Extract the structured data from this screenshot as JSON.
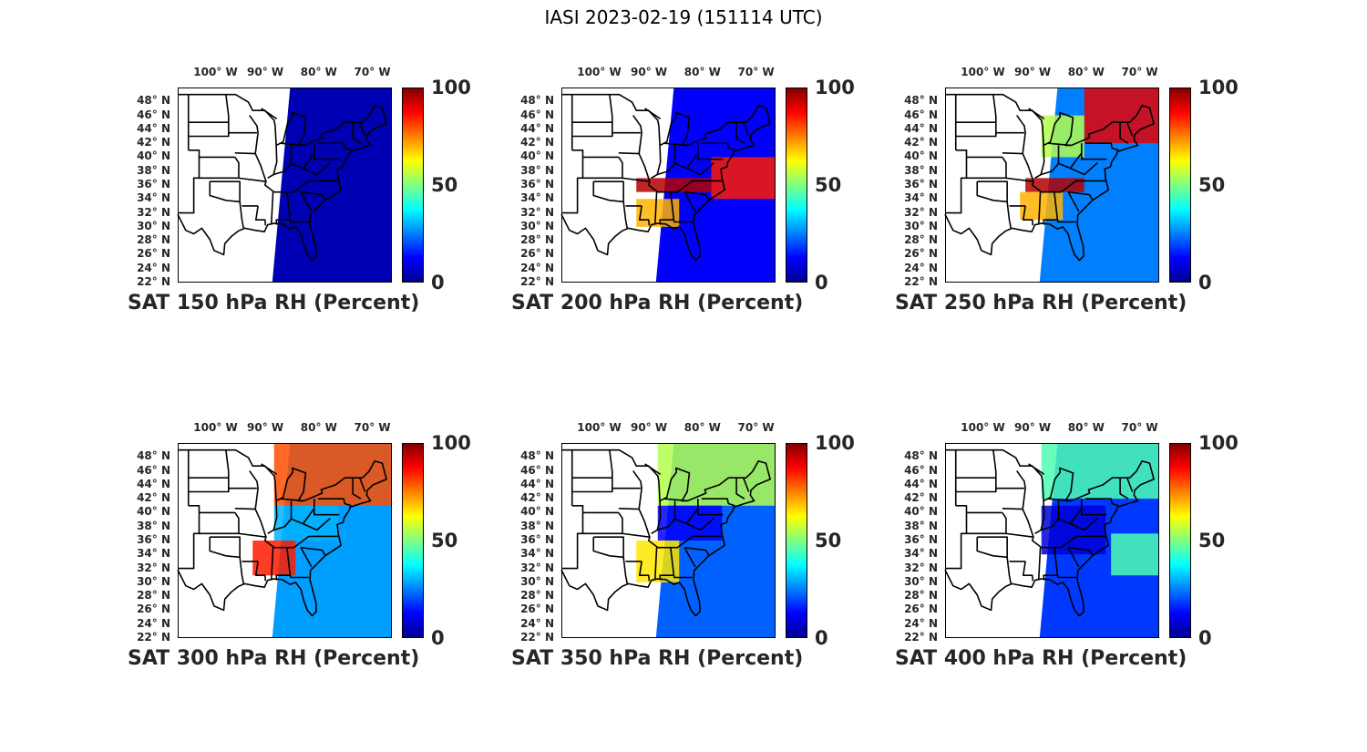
{
  "figure": {
    "title": "IASI 2023-02-19 (151114 UTC)"
  },
  "axes": {
    "lon_ticks": [
      "100° W",
      "90° W",
      "80° W",
      "70° W"
    ],
    "lat_ticks": [
      "48° N",
      "46° N",
      "44° N",
      "42° N",
      "40° N",
      "38° N",
      "36° N",
      "34° N",
      "32° N",
      "30° N",
      "28° N",
      "26° N",
      "24° N",
      "22° N"
    ]
  },
  "colorbar": {
    "ticks": [
      "100",
      "50",
      "0"
    ],
    "colormap": "jet",
    "colors": [
      "#00008f",
      "#0000ff",
      "#0080ff",
      "#00ffff",
      "#80ff80",
      "#ffff00",
      "#ff8000",
      "#ff0000",
      "#800000"
    ]
  },
  "chart_data": {
    "type": "map",
    "lon_range": [
      -106,
      -66
    ],
    "lat_range": [
      22,
      50
    ],
    "value_range": [
      0,
      100
    ],
    "panels": [
      {
        "title": "SAT 150 hPa RH (Percent)",
        "level_hPa": 150,
        "regions": [
          {
            "lon_min": -88,
            "lon_max": -66,
            "lat_min": 22,
            "lat_max": 50,
            "value": 4
          }
        ]
      },
      {
        "title": "SAT 200 hPa RH (Percent)",
        "level_hPa": 200,
        "regions": [
          {
            "lon_min": -88,
            "lon_max": -66,
            "lat_min": 22,
            "lat_max": 50,
            "value": 12
          },
          {
            "lon_min": -92,
            "lon_max": -78,
            "lat_min": 35,
            "lat_max": 37,
            "value": 95
          },
          {
            "lon_min": -78,
            "lon_max": -66,
            "lat_min": 34,
            "lat_max": 40,
            "value": 85
          },
          {
            "lon_min": -92,
            "lon_max": -84,
            "lat_min": 30,
            "lat_max": 34,
            "value": 70
          }
        ]
      },
      {
        "title": "SAT 250 hPa RH (Percent)",
        "level_hPa": 250,
        "regions": [
          {
            "lon_min": -88,
            "lon_max": -66,
            "lat_min": 22,
            "lat_max": 50,
            "value": 25
          },
          {
            "lon_min": -80,
            "lon_max": -66,
            "lat_min": 42,
            "lat_max": 50,
            "value": 90
          },
          {
            "lon_min": -91,
            "lon_max": -80,
            "lat_min": 35,
            "lat_max": 37,
            "value": 95
          },
          {
            "lon_min": -92,
            "lon_max": -84,
            "lat_min": 31,
            "lat_max": 35,
            "value": 70
          },
          {
            "lon_min": -88,
            "lon_max": -80,
            "lat_min": 40,
            "lat_max": 46,
            "value": 55
          }
        ]
      },
      {
        "title": "SAT 300 hPa RH (Percent)",
        "level_hPa": 300,
        "regions": [
          {
            "lon_min": -88,
            "lon_max": -66,
            "lat_min": 22,
            "lat_max": 50,
            "value": 28
          },
          {
            "lon_min": -88,
            "lon_max": -66,
            "lat_min": 41,
            "lat_max": 50,
            "value": 80
          },
          {
            "lon_min": -92,
            "lon_max": -84,
            "lat_min": 31,
            "lat_max": 36,
            "value": 85
          },
          {
            "lon_min": -88,
            "lon_max": -76,
            "lat_min": 36,
            "lat_max": 41,
            "value": 30
          }
        ]
      },
      {
        "title": "SAT 350 hPa RH (Percent)",
        "level_hPa": 350,
        "regions": [
          {
            "lon_min": -88,
            "lon_max": -66,
            "lat_min": 22,
            "lat_max": 50,
            "value": 22
          },
          {
            "lon_min": -88,
            "lon_max": -66,
            "lat_min": 41,
            "lat_max": 50,
            "value": 55
          },
          {
            "lon_min": -92,
            "lon_max": -84,
            "lat_min": 30,
            "lat_max": 36,
            "value": 65
          },
          {
            "lon_min": -88,
            "lon_max": -76,
            "lat_min": 36,
            "lat_max": 41,
            "value": 12
          }
        ]
      },
      {
        "title": "SAT 400 hPa RH (Percent)",
        "level_hPa": 400,
        "regions": [
          {
            "lon_min": -88,
            "lon_max": -66,
            "lat_min": 22,
            "lat_max": 50,
            "value": 18
          },
          {
            "lon_min": -88,
            "lon_max": -66,
            "lat_min": 42,
            "lat_max": 50,
            "value": 45
          },
          {
            "lon_min": -75,
            "lon_max": -66,
            "lat_min": 31,
            "lat_max": 37,
            "value": 45
          },
          {
            "lon_min": -88,
            "lon_max": -76,
            "lat_min": 34,
            "lat_max": 41,
            "value": 8
          }
        ]
      }
    ]
  }
}
